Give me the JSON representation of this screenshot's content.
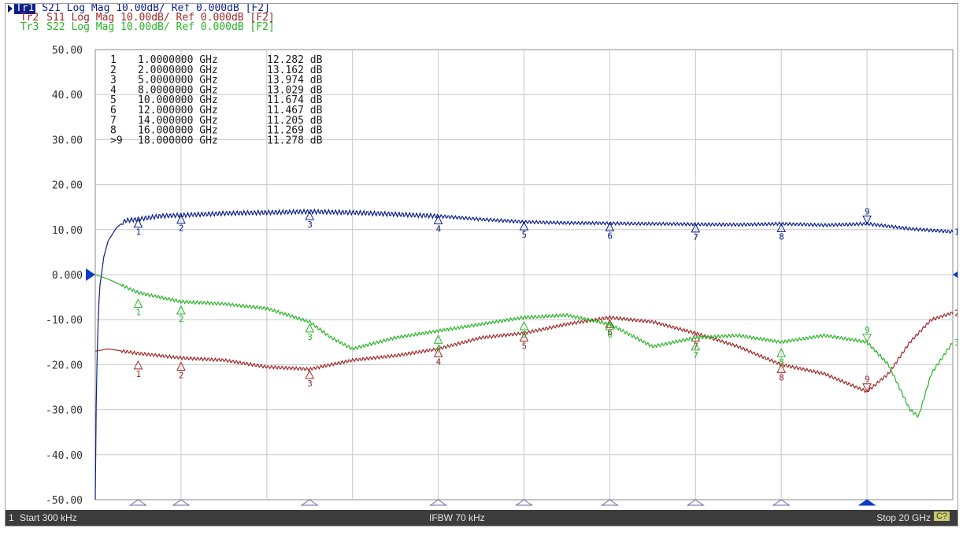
{
  "traces_header": [
    {
      "tag": "Tr1",
      "text": "S21 Log Mag 10.00dB/ Ref 0.000dB [F2]",
      "color": "#0a1e8c",
      "active": true
    },
    {
      "tag": "Tr2",
      "text": "S11 Log Mag 10.00dB/ Ref 0.000dB [F2]",
      "color": "#a02828",
      "active": false
    },
    {
      "tag": "Tr3",
      "text": "S22 Log Mag 10.00dB/ Ref 0.000dB [F2]",
      "color": "#28b428",
      "active": false
    }
  ],
  "markers_table": [
    {
      "num": "1",
      "freq": "1.0000000 GHz",
      "value": "12.282 dB"
    },
    {
      "num": "2",
      "freq": "2.0000000 GHz",
      "value": "13.162 dB"
    },
    {
      "num": "3",
      "freq": "5.0000000 GHz",
      "value": "13.974 dB"
    },
    {
      "num": "4",
      "freq": "8.0000000 GHz",
      "value": "13.029 dB"
    },
    {
      "num": "5",
      "freq": "10.000000 GHz",
      "value": "11.674 dB"
    },
    {
      "num": "6",
      "freq": "12.000000 GHz",
      "value": "11.467 dB"
    },
    {
      "num": "7",
      "freq": "14.000000 GHz",
      "value": "11.205 dB"
    },
    {
      "num": "8",
      "freq": "16.000000 GHz",
      "value": "11.269 dB"
    },
    {
      "num": ">9",
      "freq": "18.000000 GHz",
      "value": "11.278 dB"
    }
  ],
  "status_bar": {
    "channel": "1",
    "start": "Start 300 kHz",
    "ifbw": "IFBW 70 kHz",
    "stop": "Stop 20 GHz",
    "badge": "C?"
  },
  "chart_data": {
    "type": "line",
    "x_unit": "GHz",
    "xlim": [
      0.0003,
      20
    ],
    "ylim": [
      -50,
      50
    ],
    "y_ticks": [
      "50.00",
      "40.00",
      "30.00",
      "20.00",
      "10.00",
      "0.000",
      "-10.00",
      "-20.00",
      "-30.00",
      "-40.00",
      "-50.00"
    ],
    "ref_level": 0,
    "grid": true,
    "marker_freqs": [
      1,
      2,
      5,
      8,
      10,
      12,
      14,
      16,
      18
    ],
    "series": [
      {
        "trace": "Tr1",
        "param": "S21",
        "label": "1",
        "color": "#0a1e8c",
        "marker_values": [
          12.282,
          13.162,
          13.974,
          13.029,
          11.674,
          11.467,
          11.205,
          11.269,
          11.278
        ],
        "points": [
          [
            0.0003,
            -50
          ],
          [
            0.02,
            -30
          ],
          [
            0.05,
            -15
          ],
          [
            0.1,
            -3
          ],
          [
            0.2,
            4
          ],
          [
            0.3,
            7.5
          ],
          [
            0.5,
            10.5
          ],
          [
            0.7,
            12
          ],
          [
            1,
            12.3
          ],
          [
            1.5,
            13
          ],
          [
            2,
            13.2
          ],
          [
            3,
            13.6
          ],
          [
            4,
            13.8
          ],
          [
            5,
            14
          ],
          [
            6,
            13.8
          ],
          [
            7,
            13.4
          ],
          [
            8,
            13
          ],
          [
            9,
            12.3
          ],
          [
            10,
            11.7
          ],
          [
            11,
            11.5
          ],
          [
            12,
            11.4
          ],
          [
            13,
            11.3
          ],
          [
            14,
            11.2
          ],
          [
            15,
            11.1
          ],
          [
            16,
            11.3
          ],
          [
            17,
            11
          ],
          [
            18,
            11.3
          ],
          [
            19,
            10.2
          ],
          [
            20,
            9.5
          ]
        ]
      },
      {
        "trace": "Tr2",
        "param": "S11",
        "label": "2",
        "color": "#a02828",
        "marker_values": [
          -19.2,
          -19.5,
          -21.3,
          -16.5,
          -13,
          -10,
          -13,
          -20,
          -26
        ],
        "points": [
          [
            0.0003,
            -17
          ],
          [
            0.3,
            -16.5
          ],
          [
            1,
            -17.5
          ],
          [
            2,
            -18.5
          ],
          [
            3,
            -19
          ],
          [
            4,
            -20.5
          ],
          [
            5,
            -21
          ],
          [
            6,
            -19
          ],
          [
            7,
            -18
          ],
          [
            8,
            -16.5
          ],
          [
            9,
            -14
          ],
          [
            10,
            -13
          ],
          [
            11,
            -11
          ],
          [
            12,
            -9.5
          ],
          [
            13,
            -10.5
          ],
          [
            14,
            -13
          ],
          [
            15,
            -16
          ],
          [
            16,
            -20
          ],
          [
            17,
            -22
          ],
          [
            18,
            -26
          ],
          [
            18.5,
            -22
          ],
          [
            19,
            -15
          ],
          [
            19.5,
            -10
          ],
          [
            20,
            -8.5
          ]
        ]
      },
      {
        "trace": "Tr3",
        "param": "S22",
        "label": "3",
        "color": "#28b428",
        "marker_values": [
          -5.5,
          -7,
          -11,
          -13.5,
          -10.5,
          -10.5,
          -15,
          -16.5,
          -15
        ],
        "points": [
          [
            0.0003,
            0
          ],
          [
            0.3,
            -1
          ],
          [
            1,
            -4
          ],
          [
            2,
            -6
          ],
          [
            3,
            -6.5
          ],
          [
            4,
            -7.5
          ],
          [
            5,
            -10.5
          ],
          [
            5.5,
            -14
          ],
          [
            6,
            -16.5
          ],
          [
            7,
            -14
          ],
          [
            8,
            -12.5
          ],
          [
            9,
            -11
          ],
          [
            10,
            -9.5
          ],
          [
            11,
            -9
          ],
          [
            12,
            -11
          ],
          [
            13,
            -16
          ],
          [
            14,
            -14
          ],
          [
            15,
            -13.5
          ],
          [
            16,
            -15
          ],
          [
            17,
            -13.5
          ],
          [
            18,
            -15
          ],
          [
            18.5,
            -20
          ],
          [
            19,
            -30
          ],
          [
            19.2,
            -31.5
          ],
          [
            19.5,
            -22
          ],
          [
            20,
            -15
          ]
        ]
      }
    ]
  }
}
